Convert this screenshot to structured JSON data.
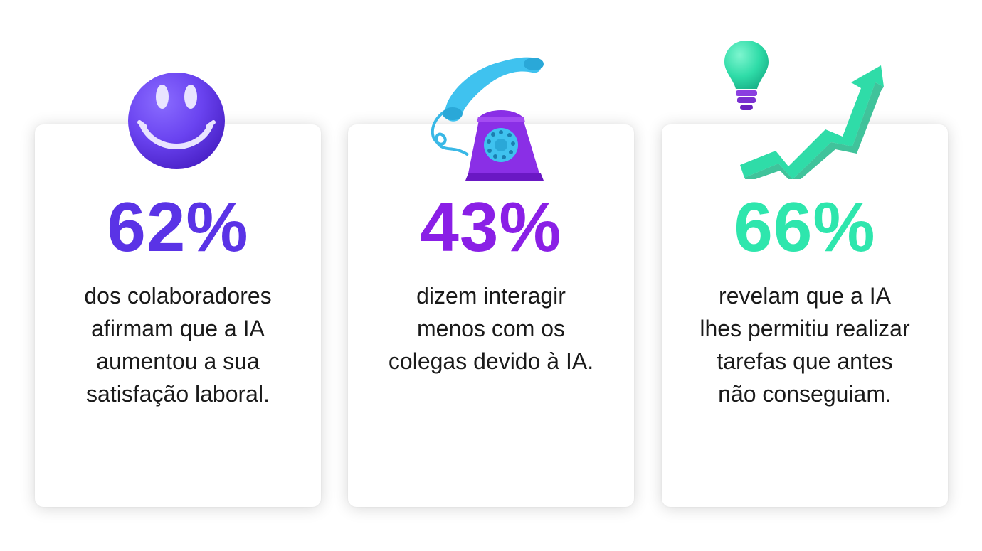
{
  "colors": {
    "stat1": "#5a33e6",
    "stat2": "#8a1fe6",
    "stat3": "#2ee6ad",
    "card_background": "#ffffff"
  },
  "cards": [
    {
      "stat": "62%",
      "lines": [
        "dos colaboradores",
        "afirmam que a IA",
        "aumentou a sua",
        "satisfação laboral."
      ],
      "icon": "smiley-face-icon"
    },
    {
      "stat": "43%",
      "lines": [
        "dizem interagir",
        "menos com os",
        "colegas devido à IA."
      ],
      "icon": "telephone-icon"
    },
    {
      "stat": "66%",
      "lines": [
        "revelam que a IA",
        "lhes permitiu realizar",
        "tarefas que antes",
        "não conseguiam."
      ],
      "icon": "lightbulb-icon"
    }
  ]
}
